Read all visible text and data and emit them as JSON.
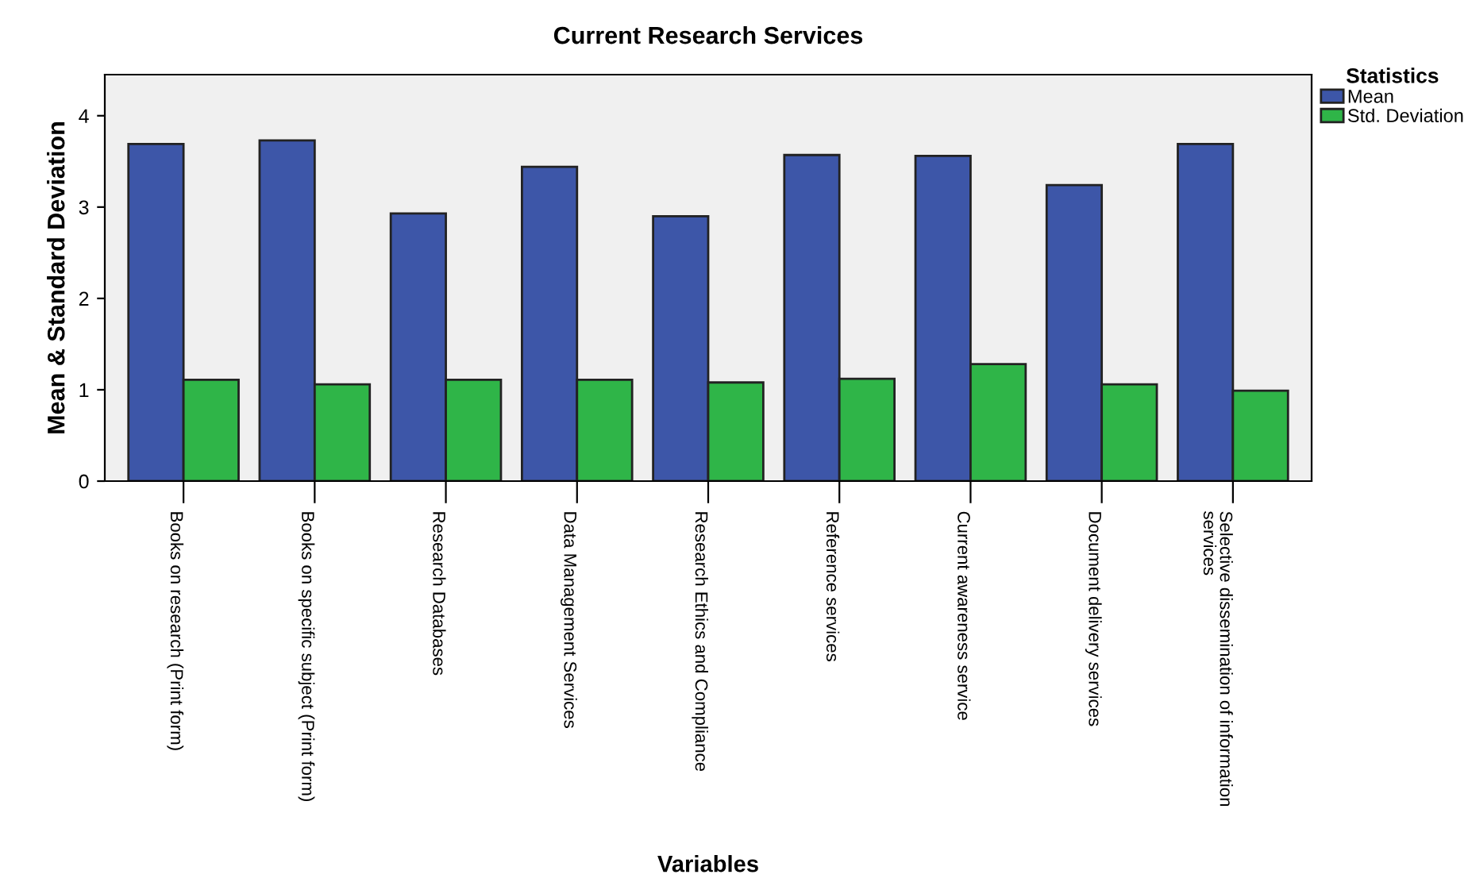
{
  "chart_data": {
    "type": "bar",
    "title": "Current Research Services",
    "xlabel": "Variables",
    "ylabel": "Mean & Standard Deviation",
    "legend_title": "Statistics",
    "categories": [
      "Books on research (Print form)",
      "Books on specific subject (Print form)",
      "Research Databases",
      "Data Management Services",
      "Research Ethics and Compliance",
      "Reference services",
      "Current awareness service",
      "Document delivery services",
      "Selective dissemination of information\nservices"
    ],
    "series": [
      {
        "name": "Mean",
        "color": "#3d56a8",
        "values": [
          3.69,
          3.73,
          2.93,
          3.44,
          2.9,
          3.57,
          3.56,
          3.24,
          3.69
        ]
      },
      {
        "name": "Std. Deviation",
        "color": "#2fb548",
        "values": [
          1.11,
          1.06,
          1.11,
          1.11,
          1.08,
          1.12,
          1.28,
          1.06,
          0.99
        ]
      }
    ],
    "ylim": [
      0,
      4.45
    ],
    "yticks": [
      0,
      1,
      2,
      3,
      4
    ],
    "grid": false,
    "legend": "top right"
  }
}
